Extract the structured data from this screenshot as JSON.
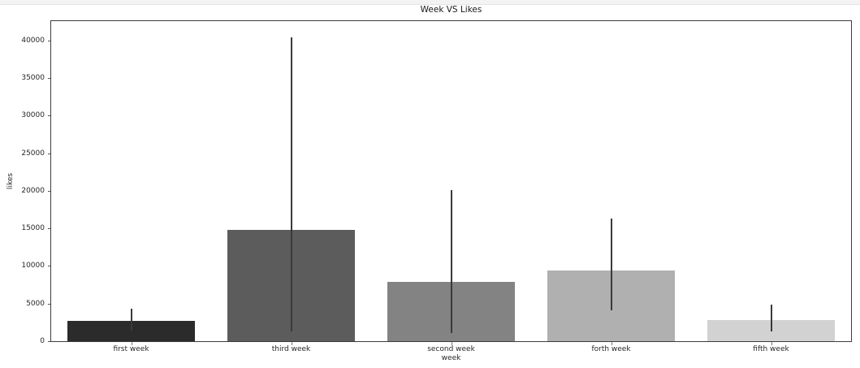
{
  "page": {
    "header_strip_color": "#f3f3f3",
    "background_color": "#ffffff"
  },
  "chart_data": {
    "type": "bar",
    "title": "Week VS Likes",
    "xlabel": "week",
    "ylabel": "likes",
    "categories": [
      "first week",
      "third week",
      "second week",
      "forth week",
      "fifth week"
    ],
    "values": [
      2750,
      14850,
      7900,
      9400,
      2820
    ],
    "error_low": [
      1400,
      1300,
      1100,
      4150,
      1250
    ],
    "error_high": [
      4300,
      40400,
      20100,
      16300,
      4900
    ],
    "bar_colors": [
      "#2b2b2b",
      "#5c5c5c",
      "#838383",
      "#b0b0b0",
      "#d2d2d2"
    ],
    "error_bar_color": "#3a3a3a",
    "ylim": [
      0,
      42580
    ],
    "yticks": [
      0,
      5000,
      10000,
      15000,
      20000,
      25000,
      30000,
      35000,
      40000
    ],
    "ytick_labels": [
      "0",
      "5000",
      "10000",
      "15000",
      "20000",
      "25000",
      "30000",
      "35000",
      "40000"
    ],
    "bar_width_fraction": 0.8,
    "grid": false,
    "legend_position": "none"
  }
}
